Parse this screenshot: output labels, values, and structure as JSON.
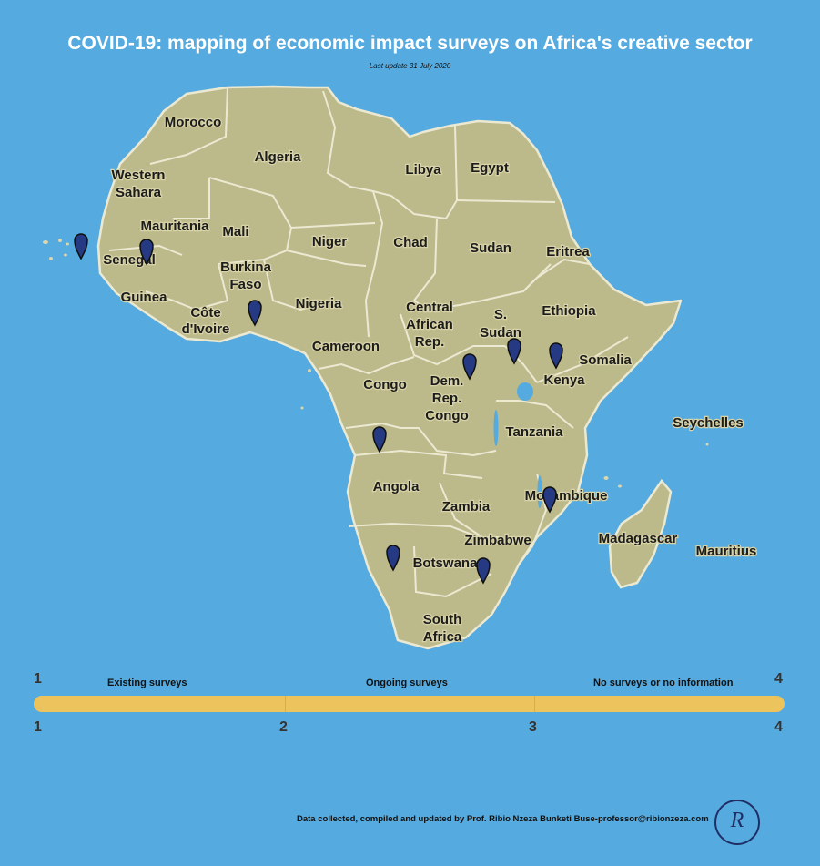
{
  "title": "COVID-19:  mapping of economic impact surveys on Africa's creative sector",
  "subtitle": "Last update 31 July 2020",
  "colors": {
    "ocean": "#55aadf",
    "land": "#bcb98a",
    "border": "#ece9d3",
    "marker": "#253a82",
    "legend_bar": "#ecc35c"
  },
  "countries": [
    "Morocco",
    "Algeria",
    "Libya",
    "Egypt",
    "Western",
    "Sahara",
    "Mauritania",
    "Mali",
    "Niger",
    "Chad",
    "Sudan",
    "Eritrea",
    "Senegal",
    "Burkina",
    "Faso",
    "Guinea",
    "Côte",
    "d'Ivoire",
    "Nigeria",
    "Central",
    "African",
    "Rep.",
    "S.",
    "Sudan",
    "Ethiopia",
    "Cameroon",
    "Somalia",
    "Congo",
    "Dem.",
    "Rep.",
    "Congo",
    "Kenya",
    "Seychelles",
    "Tanzania",
    "Angola",
    "Mozambique",
    "Zambia",
    "Zimbabwe",
    "Madagascar",
    "Mauritius",
    "Botswana",
    "South",
    "Africa"
  ],
  "markers": [
    {
      "icon": "map-pin-icon",
      "country": "Cape Verde"
    },
    {
      "icon": "map-pin-icon",
      "country": "Senegal"
    },
    {
      "icon": "map-pin-icon",
      "country": "Burkina Faso"
    },
    {
      "icon": "map-pin-icon",
      "country": "South Sudan"
    },
    {
      "icon": "map-pin-icon",
      "country": "Kenya"
    },
    {
      "icon": "map-pin-icon",
      "country": "Democratic Republic of the Congo"
    },
    {
      "icon": "map-pin-icon",
      "country": "Angola"
    },
    {
      "icon": "map-pin-icon",
      "country": "Mozambique"
    },
    {
      "icon": "map-pin-icon",
      "country": "Namibia"
    },
    {
      "icon": "map-pin-icon",
      "country": "Botswana"
    }
  ],
  "legend": {
    "existing": "Existing surveys",
    "ongoing": "Ongoing surveys",
    "none": "No surveys or no information",
    "top_left": "1",
    "top_right": "4",
    "scale": [
      "1",
      "2",
      "3",
      "4"
    ]
  },
  "footer": "Data collected, compiled and updated by Prof. Ribio Nzeza Bunketi Buse-professor@ribionzeza.com",
  "logo_text": "R"
}
